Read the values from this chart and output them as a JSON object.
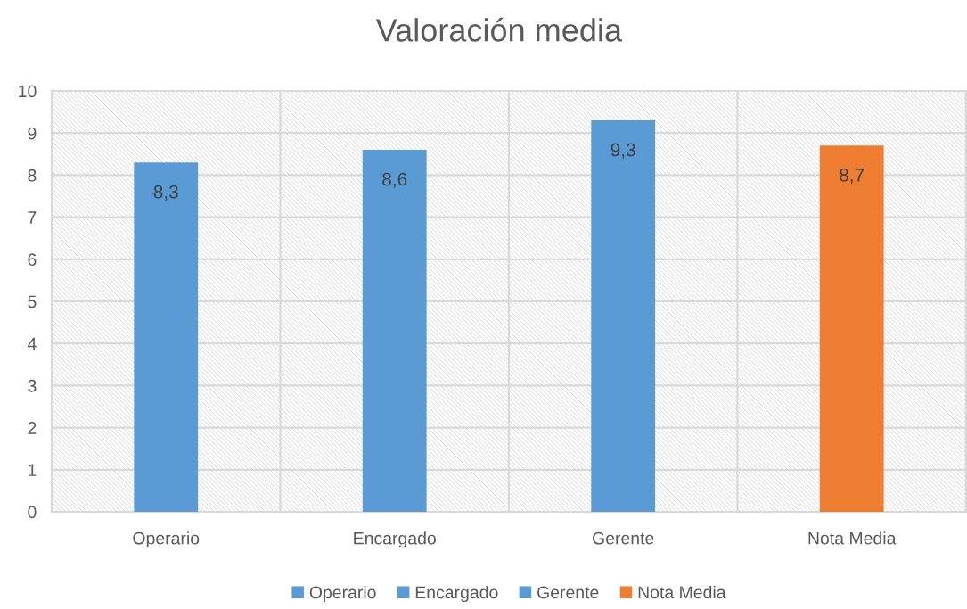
{
  "chart_data": {
    "type": "bar",
    "title": "Valoración media",
    "categories": [
      "Operario",
      "Encargado",
      "Gerente",
      "Nota Media"
    ],
    "series": [
      {
        "name": "Operario",
        "color": "#5b9bd5",
        "values": [
          8.3,
          null,
          null,
          null
        ],
        "value_labels": [
          "8,3",
          null,
          null,
          null
        ]
      },
      {
        "name": "Encargado",
        "color": "#5b9bd5",
        "values": [
          null,
          8.6,
          null,
          null
        ],
        "value_labels": [
          null,
          "8,6",
          null,
          null
        ]
      },
      {
        "name": "Gerente",
        "color": "#5b9bd5",
        "values": [
          null,
          null,
          9.3,
          null
        ],
        "value_labels": [
          null,
          null,
          "9,3",
          null
        ]
      },
      {
        "name": "Nota Media",
        "color": "#ed7d31",
        "values": [
          null,
          null,
          null,
          8.7
        ],
        "value_labels": [
          null,
          null,
          null,
          "8,7"
        ]
      }
    ],
    "ylim": [
      0,
      10
    ],
    "yticks": [
      0,
      1,
      2,
      3,
      4,
      5,
      6,
      7,
      8,
      9,
      10
    ],
    "grid": true,
    "legend": "bottom"
  }
}
